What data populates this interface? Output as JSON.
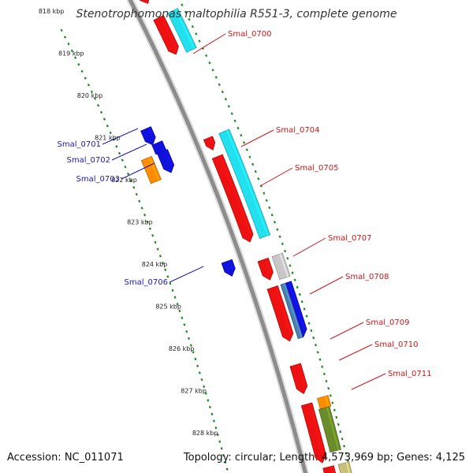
{
  "title": "Stenotrophomonas maltophilia R551-3, complete genome",
  "footer": {
    "accession": "Accession: NC_011071",
    "info": "Topology: circular; Length: 4,573,969 bp; Genes: 4,125"
  },
  "colors": {
    "background": "#ffffff",
    "backbone": "#8c8c8c",
    "tick": "#1f8a1f",
    "cds": "#ee1111",
    "cds_alt": "#1111dd",
    "cyan_feature": "#22e0ee",
    "orange_feature": "#ff8c00",
    "olive_feature": "#6b8c2a",
    "khaki_feature": "#c8bf7a",
    "grey_feature": "#c8c8c8",
    "steelblue_feature": "#4a7fb0"
  },
  "scale_labels": [
    "818 kbp",
    "819 kbp",
    "820 kbp",
    "821 kbp",
    "822 kbp",
    "823 kbp",
    "824 kbp",
    "825 kbp",
    "826 kbp",
    "827 kbp",
    "828 kbp"
  ],
  "gene_labels": [
    {
      "id": "Smal_0700",
      "text": "Smal_0700",
      "strand": "plus"
    },
    {
      "id": "Smal_0701",
      "text": "Smal_0701",
      "strand": "minus"
    },
    {
      "id": "Smal_0702",
      "text": "Smal_0702",
      "strand": "minus"
    },
    {
      "id": "Smal_0703",
      "text": "Smal_0703",
      "strand": "minus"
    },
    {
      "id": "Smal_0704",
      "text": "Smal_0704",
      "strand": "plus"
    },
    {
      "id": "Smal_0705",
      "text": "Smal_0705",
      "strand": "plus"
    },
    {
      "id": "Smal_0706",
      "text": "Smal_0706",
      "strand": "minus"
    },
    {
      "id": "Smal_0707",
      "text": "Smal_0707",
      "strand": "plus"
    },
    {
      "id": "Smal_0708",
      "text": "Smal_0708",
      "strand": "plus"
    },
    {
      "id": "Smal_0709",
      "text": "Smal_0709",
      "strand": "plus"
    },
    {
      "id": "Smal_0710",
      "text": "Smal_0710",
      "strand": "plus"
    },
    {
      "id": "Smal_0711",
      "text": "Smal_0711",
      "strand": "plus"
    }
  ]
}
